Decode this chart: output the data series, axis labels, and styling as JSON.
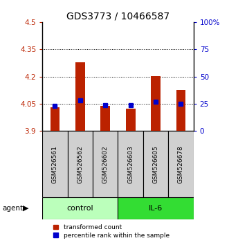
{
  "title": "GDS3773 / 10466587",
  "samples": [
    "GSM526561",
    "GSM526562",
    "GSM526602",
    "GSM526603",
    "GSM526605",
    "GSM526678"
  ],
  "red_values": [
    4.03,
    4.278,
    4.04,
    4.022,
    4.202,
    4.125
  ],
  "blue_values": [
    23,
    28,
    24,
    24,
    27,
    25
  ],
  "ymin": 3.9,
  "ymax": 4.5,
  "y_ticks": [
    3.9,
    4.05,
    4.2,
    4.35,
    4.5
  ],
  "y_tick_labels": [
    "3.9",
    "4.05",
    "4.2",
    "4.35",
    "4.5"
  ],
  "y2_ticks": [
    0,
    25,
    50,
    75,
    100
  ],
  "y2_tick_labels": [
    "0",
    "25",
    "50",
    "75",
    "100%"
  ],
  "dotted_lines": [
    4.05,
    4.2,
    4.35
  ],
  "bar_bottom": 3.9,
  "bar_color": "#bb2200",
  "blue_color": "#0000cc",
  "group_labels": [
    "control",
    "IL-6"
  ],
  "group_colors": [
    "#bbffbb",
    "#33dd33"
  ],
  "group_ranges": [
    [
      0,
      3
    ],
    [
      3,
      6
    ]
  ],
  "legend_red": "transformed count",
  "legend_blue": "percentile rank within the sample",
  "title_fontsize": 10,
  "tick_fontsize": 7.5,
  "sample_fontsize": 6.5,
  "group_fontsize": 8,
  "legend_fontsize": 6.5
}
